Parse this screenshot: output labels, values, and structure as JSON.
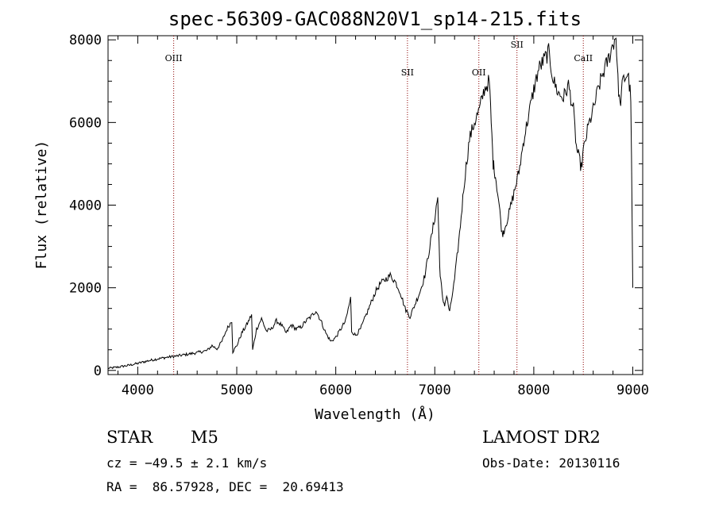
{
  "chart_data": {
    "type": "line",
    "title": "spec-56309-GAC088N20V1_sp14-215.fits",
    "xlabel": "Wavelength (Å)",
    "ylabel": "Flux (relative)",
    "xlim": [
      3700,
      9100
    ],
    "ylim": [
      -100,
      8100
    ],
    "xticks": [
      4000,
      5000,
      6000,
      7000,
      8000,
      9000
    ],
    "yticks": [
      0,
      2000,
      4000,
      6000,
      8000
    ],
    "xtick_labels": [
      "4000",
      "5000",
      "6000",
      "7000",
      "8000",
      "9000"
    ],
    "ytick_labels": [
      "0",
      "2000",
      "4000",
      "6000",
      "8000"
    ],
    "line_color": "#000000",
    "marker_color": "#8b0000",
    "lines": [
      {
        "label": "OIII",
        "x": 4363
      },
      {
        "label": "SII",
        "x": 6724
      },
      {
        "label": "OII",
        "x": 7445
      },
      {
        "label": "SII",
        "x": 7830
      },
      {
        "label": "CaII",
        "x": 8500
      }
    ],
    "series": [
      {
        "x": [
          3700,
          3800,
          3900,
          4000,
          4100,
          4200,
          4300,
          4400,
          4500,
          4600,
          4700,
          4750,
          4800,
          4850,
          4900,
          4950,
          4960,
          5000,
          5050,
          5100,
          5150,
          5160,
          5200,
          5250,
          5300,
          5350,
          5400,
          5450,
          5500,
          5550,
          5600,
          5650,
          5700,
          5750,
          5800,
          5850,
          5900,
          5950,
          6000,
          6050,
          6100,
          6150,
          6160,
          6200,
          6250,
          6300,
          6350,
          6400,
          6450,
          6500,
          6550,
          6600,
          6650,
          6700,
          6750,
          6800,
          6850,
          6900,
          6950,
          7000,
          7030,
          7050,
          7060,
          7080,
          7100,
          7120,
          7150,
          7200,
          7250,
          7300,
          7350,
          7400,
          7450,
          7500,
          7550,
          7570,
          7590,
          7600,
          7620,
          7650,
          7680,
          7700,
          7750,
          7800,
          7850,
          7900,
          7950,
          8000,
          8050,
          8100,
          8150,
          8200,
          8250,
          8300,
          8350,
          8400,
          8430,
          8450,
          8480,
          8500,
          8550,
          8600,
          8650,
          8700,
          8750,
          8800,
          8830,
          8850,
          8870,
          8900,
          8950,
          8980,
          9000
        ],
        "y": [
          50,
          80,
          120,
          170,
          230,
          280,
          320,
          350,
          390,
          430,
          480,
          600,
          520,
          700,
          1000,
          1200,
          450,
          600,
          900,
          1100,
          1350,
          500,
          1000,
          1250,
          950,
          1000,
          1200,
          1100,
          900,
          1100,
          1000,
          1050,
          1200,
          1300,
          1450,
          1200,
          900,
          700,
          800,
          1000,
          1200,
          1750,
          950,
          850,
          1000,
          1300,
          1600,
          1900,
          2100,
          2200,
          2300,
          2150,
          1900,
          1500,
          1300,
          1600,
          1900,
          2300,
          3000,
          3700,
          4200,
          2500,
          2200,
          1700,
          1600,
          1800,
          1400,
          2200,
          3300,
          4600,
          5600,
          6000,
          6300,
          6800,
          7000,
          6000,
          5000,
          4900,
          4600,
          4000,
          3300,
          3400,
          3800,
          4300,
          4800,
          5600,
          6200,
          6800,
          7300,
          7500,
          7700,
          7000,
          6700,
          6600,
          6900,
          6300,
          5400,
          5200,
          4900,
          5300,
          5900,
          6300,
          6800,
          7200,
          7500,
          7900,
          8100,
          7000,
          6400,
          7000,
          7200,
          6600,
          2000
        ]
      }
    ]
  },
  "info": {
    "object_label": "STAR",
    "object_class": "M5",
    "survey": "LAMOST DR2",
    "cz": "cz = −49.5 ± 2.1 km/s",
    "obs_date": "Obs-Date: 20130116",
    "coords": "RA =  86.57928, DEC =  20.69413"
  }
}
